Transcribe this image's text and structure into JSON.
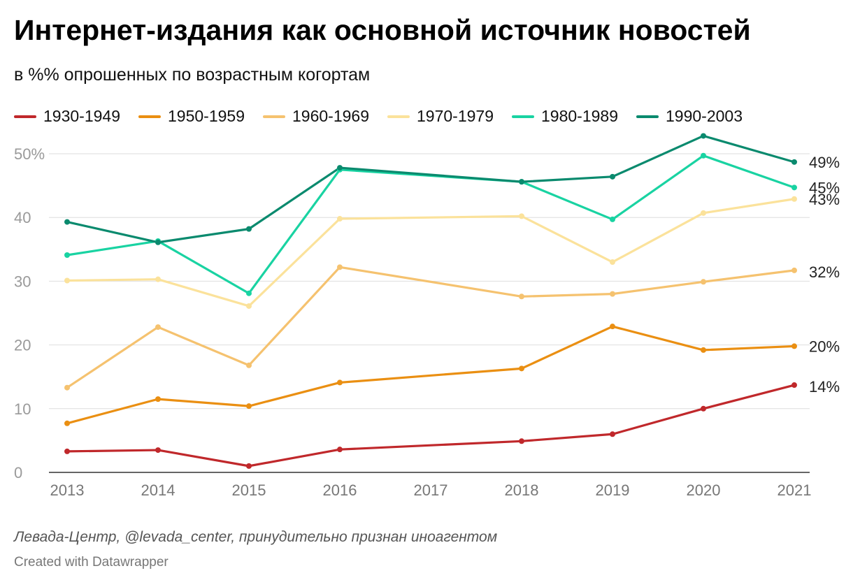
{
  "header": {
    "title": "Интернет-издания как основной источник новостей",
    "subtitle": "в %% опрошенных по возрастным когортам"
  },
  "footer": {
    "source": "Левада-Центр, @levada_center, принудительно признан иноагентом",
    "credit": "Created with Datawrapper"
  },
  "chart_data": {
    "type": "line",
    "title": "Интернет-издания как основной источник новостей",
    "subtitle": "в %% опрошенных по возрастным когортам",
    "xlabel": "",
    "ylabel": "",
    "x": [
      2013,
      2014,
      2015,
      2016,
      2018,
      2019,
      2020,
      2021
    ],
    "x_ticks": [
      "2013",
      "2014",
      "2015",
      "2016",
      "2017",
      "2018",
      "2019",
      "2020",
      "2021"
    ],
    "y_ticks": [
      "0",
      "10",
      "20",
      "30",
      "40",
      "50%"
    ],
    "xlim": [
      2013,
      2021
    ],
    "ylim": [
      0,
      50
    ],
    "grid": "horizontal",
    "legend_position": "top",
    "series": [
      {
        "name": "1930-1949",
        "color": "#c0282b",
        "values": [
          3.3,
          3.5,
          1.0,
          3.6,
          4.9,
          6.0,
          10.0,
          13.7
        ],
        "end_label": "14%"
      },
      {
        "name": "1950-1959",
        "color": "#ea8f12",
        "values": [
          7.7,
          11.5,
          10.4,
          14.1,
          16.3,
          22.9,
          19.2,
          19.8
        ],
        "end_label": "20%"
      },
      {
        "name": "1960-1969",
        "color": "#f5c26f",
        "values": [
          13.3,
          22.8,
          16.8,
          32.2,
          27.6,
          28.0,
          29.9,
          31.7
        ],
        "end_label": "32%"
      },
      {
        "name": "1970-1979",
        "color": "#fbe29b",
        "values": [
          30.1,
          30.3,
          26.1,
          39.8,
          40.2,
          33.0,
          40.7,
          42.9
        ],
        "end_label": "43%"
      },
      {
        "name": "1980-1989",
        "color": "#19d3a2",
        "values": [
          34.1,
          36.3,
          28.1,
          47.5,
          45.6,
          39.7,
          49.7,
          44.7
        ],
        "end_label": "45%"
      },
      {
        "name": "1990-2003",
        "color": "#0a8a6e",
        "values": [
          39.3,
          36.1,
          38.2,
          47.8,
          45.6,
          46.4,
          52.8,
          48.7
        ],
        "end_label": "49%"
      }
    ]
  }
}
